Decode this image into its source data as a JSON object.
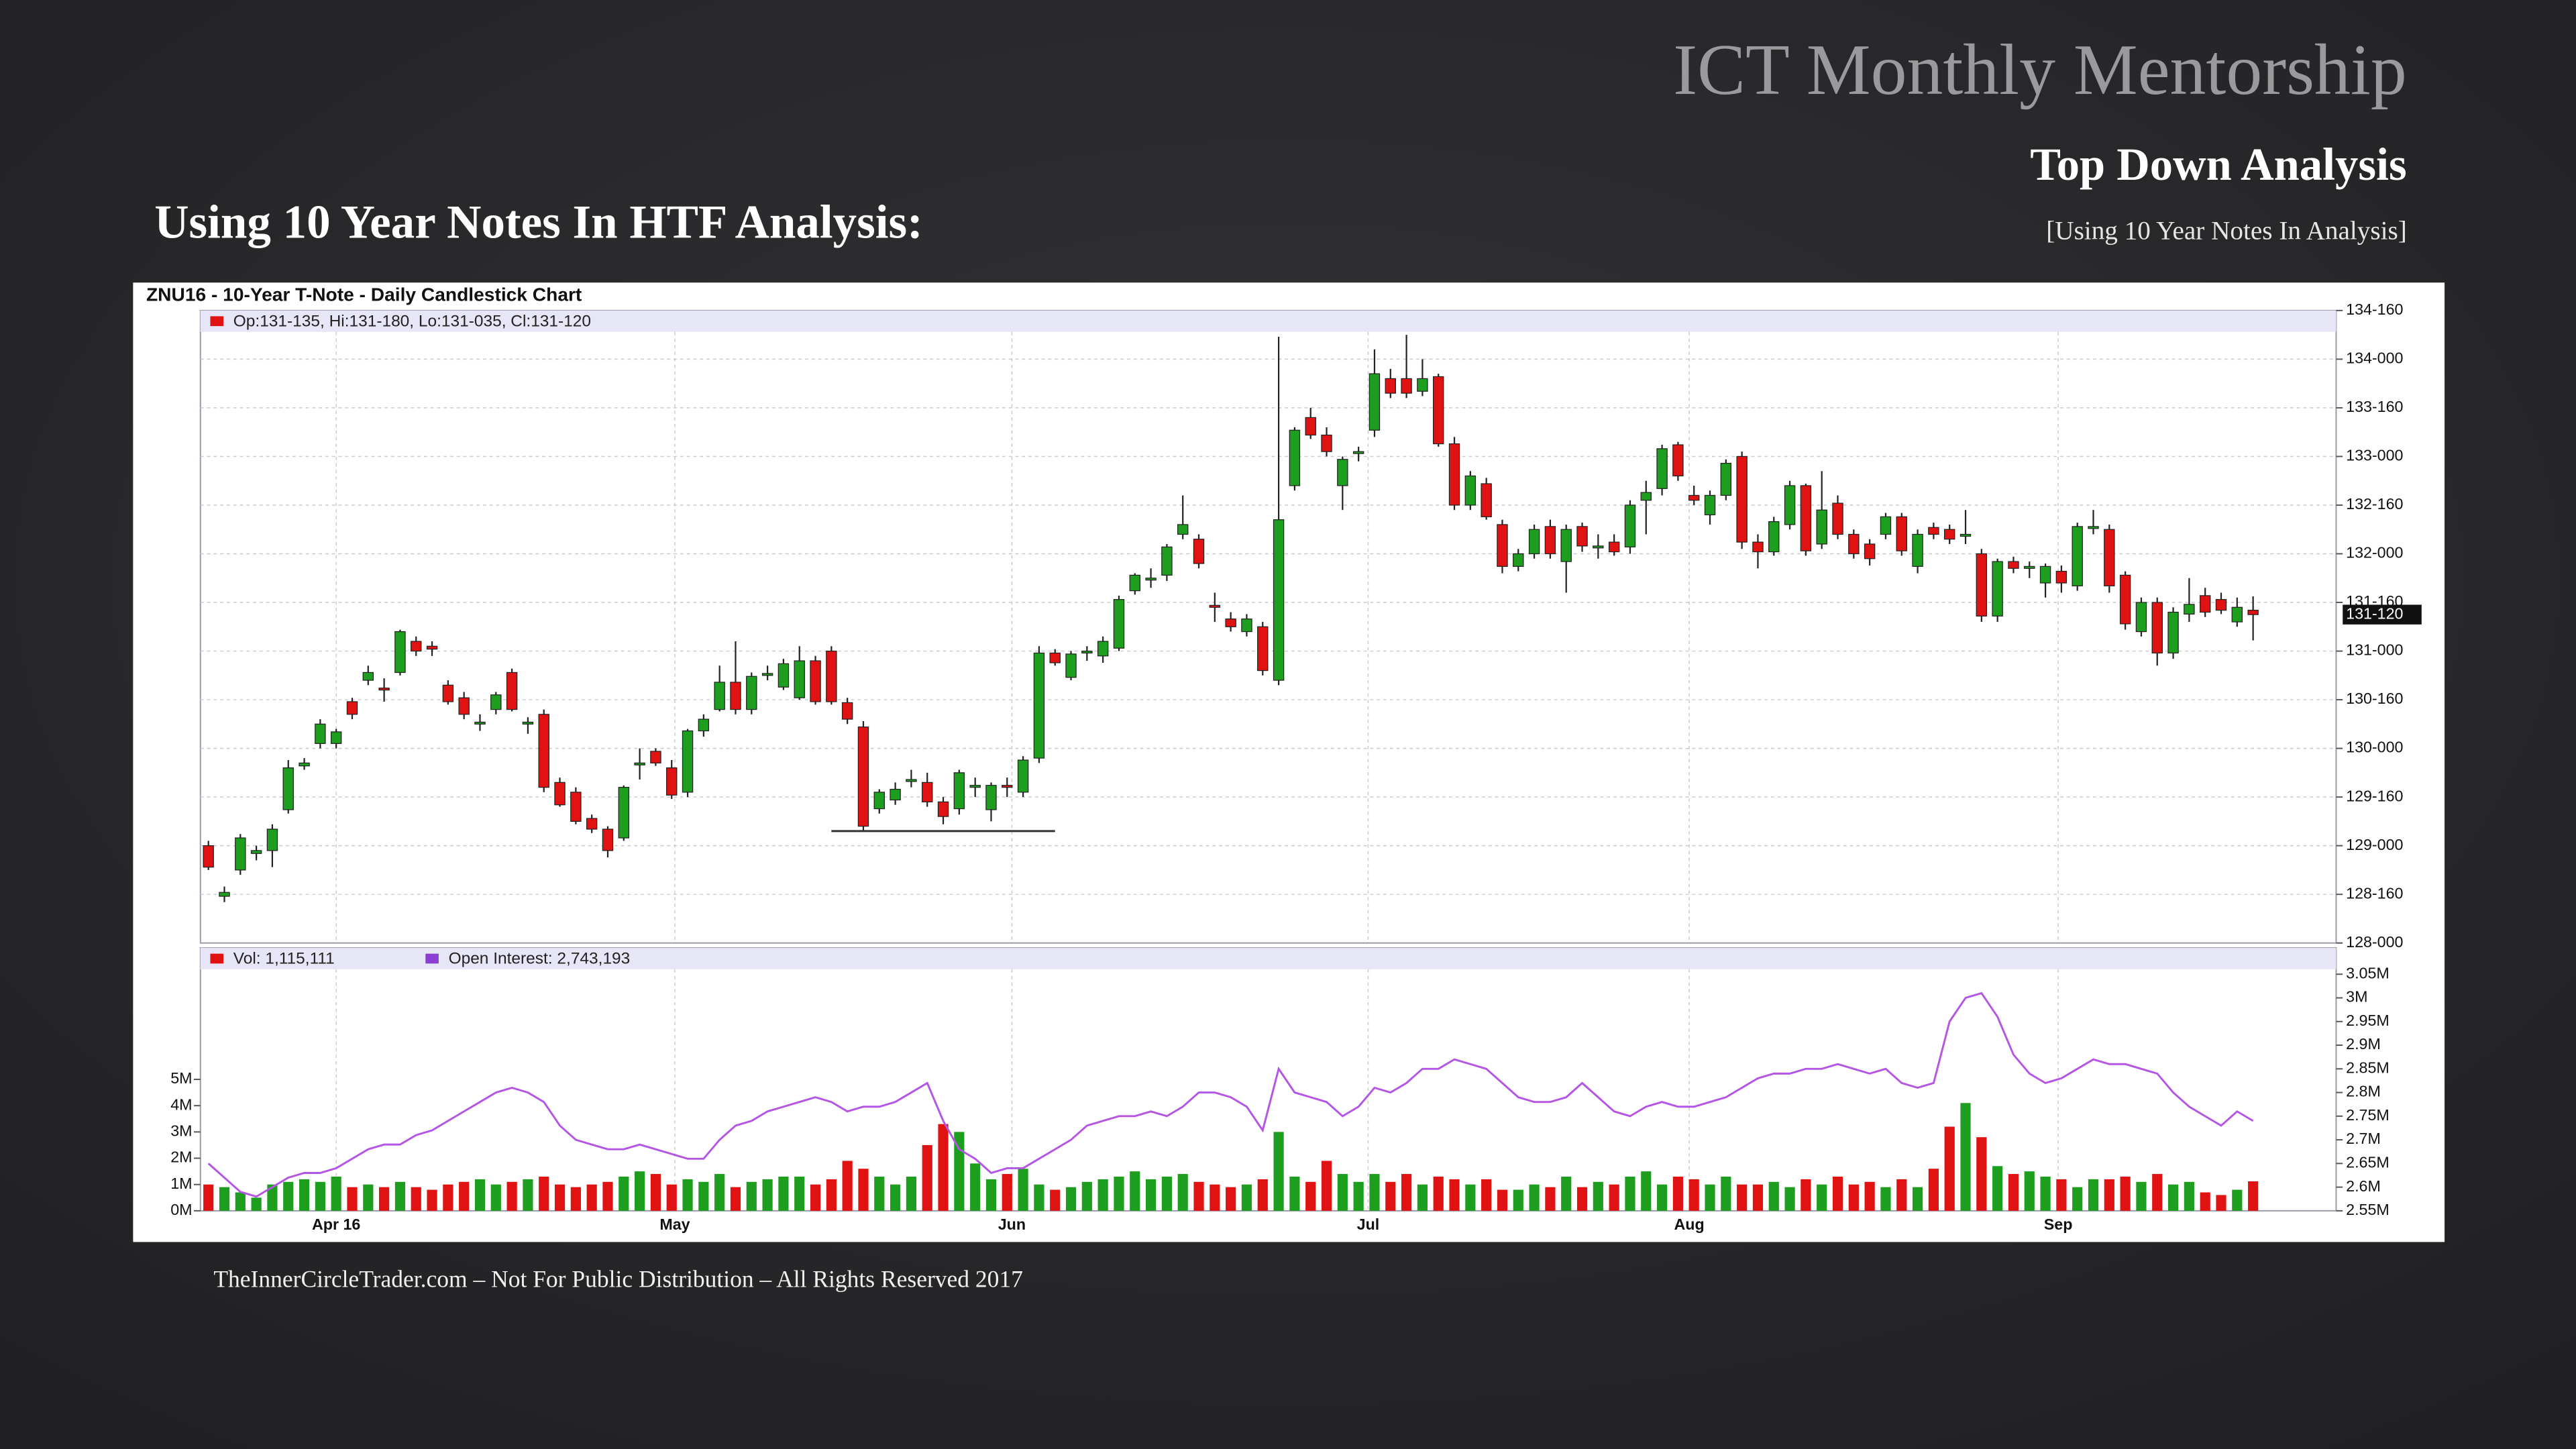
{
  "header": {
    "brand": "ICT Monthly Mentorship",
    "title": "Top Down Analysis",
    "subtitle": "[Using 10 Year Notes In Analysis]",
    "slide_title": "Using 10 Year Notes In HTF Analysis:"
  },
  "footer": "TheInnerCircleTrader.com – Not For Public Distribution – All Rights Reserved 2017",
  "chart_data": {
    "type": "candlestick",
    "title": "ZNU16 - 10-Year T-Note - Daily Candlestick Chart",
    "ohlc_label": "Op:131-135, Hi:131-180, Lo:131-035, Cl:131-120",
    "up_color": "#1e9e1e",
    "down_color": "#e01212",
    "grid": true,
    "xlim": [
      -0.5,
      133.2
    ],
    "ylim": [
      128,
      134.5
    ],
    "xticks": [
      {
        "value": 8,
        "label": "Apr 16"
      },
      {
        "value": 29.2,
        "label": "May"
      },
      {
        "value": 50.3,
        "label": "Jun"
      },
      {
        "value": 72.6,
        "label": "Jul"
      },
      {
        "value": 92.7,
        "label": "Aug"
      },
      {
        "value": 115.8,
        "label": "Sep"
      }
    ],
    "yticks": [
      {
        "value": 128,
        "label": "128-000"
      },
      {
        "value": 128.5,
        "label": "128-160"
      },
      {
        "value": 129,
        "label": "129-000"
      },
      {
        "value": 129.5,
        "label": "129-160"
      },
      {
        "value": 130,
        "label": "130-000"
      },
      {
        "value": 130.5,
        "label": "130-160"
      },
      {
        "value": 131,
        "label": "131-000"
      },
      {
        "value": 131.5,
        "label": "131-160"
      },
      {
        "value": 132,
        "label": "132-000"
      },
      {
        "value": 132.5,
        "label": "132-160"
      },
      {
        "value": 133,
        "label": "133-000"
      },
      {
        "value": 133.5,
        "label": "133-160"
      },
      {
        "value": 134,
        "label": "134-000"
      },
      {
        "value": 134.5,
        "label": "134-160"
      }
    ],
    "last_price_label": "131-120",
    "support_line": {
      "start": 39,
      "end": 53,
      "value": 129.15
    },
    "open": [
      129.0,
      128.48,
      128.75,
      128.92,
      128.95,
      129.37,
      129.82,
      130.05,
      130.05,
      130.48,
      130.7,
      130.62,
      130.78,
      131.1,
      131.05,
      130.65,
      130.52,
      130.25,
      130.4,
      130.78,
      130.25,
      130.35,
      129.65,
      129.55,
      129.28,
      129.17,
      129.08,
      129.83,
      129.97,
      129.8,
      129.55,
      130.18,
      130.4,
      130.68,
      130.4,
      130.75,
      130.63,
      130.52,
      130.9,
      131.0,
      130.47,
      130.22,
      129.38,
      129.47,
      129.66,
      129.65,
      129.45,
      129.38,
      129.6,
      129.37,
      129.62,
      129.55,
      129.9,
      130.98,
      130.73,
      130.98,
      130.95,
      131.03,
      131.62,
      131.73,
      131.78,
      132.2,
      132.15,
      131.47,
      131.33,
      131.2,
      131.25,
      130.7,
      132.7,
      133.4,
      133.22,
      132.7,
      133.03,
      133.27,
      133.8,
      133.8,
      133.67,
      133.82,
      133.13,
      132.5,
      132.72,
      132.3,
      131.87,
      132.0,
      132.28,
      131.92,
      132.28,
      132.06,
      132.12,
      132.07,
      132.55,
      132.67,
      133.12,
      132.6,
      132.4,
      132.6,
      133.0,
      132.12,
      132.02,
      132.3,
      132.7,
      132.1,
      132.52,
      132.2,
      132.1,
      132.2,
      132.38,
      131.87,
      132.27,
      132.25,
      132.18,
      132.0,
      131.36,
      131.92,
      131.85,
      131.7,
      131.82,
      131.67,
      132.27,
      132.25,
      131.78,
      131.2,
      131.5,
      130.98,
      131.38,
      131.57,
      131.53,
      131.3,
      131.42
    ],
    "high": [
      129.05,
      128.58,
      129.12,
      129.0,
      129.22,
      129.88,
      129.9,
      130.3,
      130.2,
      130.52,
      130.85,
      130.72,
      131.22,
      131.15,
      131.1,
      130.7,
      130.58,
      130.35,
      130.58,
      130.82,
      130.32,
      130.4,
      129.7,
      129.6,
      129.32,
      129.2,
      129.62,
      130.0,
      130.0,
      129.88,
      130.2,
      130.35,
      130.85,
      131.1,
      130.78,
      130.85,
      130.92,
      131.05,
      130.95,
      131.05,
      130.52,
      130.28,
      129.58,
      129.65,
      129.78,
      129.75,
      129.5,
      129.78,
      129.7,
      129.65,
      129.7,
      129.92,
      131.05,
      131.02,
      131.0,
      131.05,
      131.15,
      131.57,
      131.8,
      131.85,
      132.1,
      132.6,
      132.2,
      131.6,
      131.4,
      131.38,
      131.3,
      134.23,
      133.3,
      133.5,
      133.3,
      133.0,
      133.1,
      134.1,
      133.9,
      134.25,
      134.0,
      133.85,
      133.2,
      132.85,
      132.78,
      132.35,
      132.05,
      132.3,
      132.35,
      132.3,
      132.32,
      132.2,
      132.2,
      132.55,
      132.75,
      133.12,
      133.15,
      132.7,
      132.65,
      132.97,
      133.05,
      132.2,
      132.38,
      132.75,
      132.72,
      132.85,
      132.6,
      132.25,
      132.15,
      132.42,
      132.42,
      132.25,
      132.32,
      132.3,
      132.45,
      132.05,
      131.95,
      131.97,
      131.92,
      131.9,
      131.88,
      132.32,
      132.45,
      132.3,
      131.82,
      131.55,
      131.55,
      131.45,
      131.75,
      131.65,
      131.6,
      131.55,
      131.5625
    ],
    "low": [
      128.75,
      128.42,
      128.7,
      128.85,
      128.78,
      129.33,
      129.78,
      130.0,
      130.0,
      130.3,
      130.65,
      130.48,
      130.75,
      130.95,
      130.95,
      130.45,
      130.3,
      130.18,
      130.35,
      130.38,
      130.15,
      129.55,
      129.4,
      129.22,
      129.13,
      128.88,
      129.05,
      129.68,
      129.82,
      129.48,
      129.5,
      130.12,
      130.38,
      130.35,
      130.35,
      130.7,
      130.6,
      130.5,
      130.45,
      130.45,
      130.25,
      129.15,
      129.33,
      129.42,
      129.6,
      129.4,
      129.22,
      129.32,
      129.5,
      129.25,
      129.5,
      129.5,
      129.85,
      130.85,
      130.7,
      130.9,
      130.88,
      131.0,
      131.58,
      131.65,
      131.72,
      132.15,
      131.85,
      131.3,
      131.2,
      131.15,
      130.75,
      130.65,
      132.65,
      133.18,
      133.0,
      132.45,
      132.95,
      133.2,
      133.6,
      133.6,
      133.62,
      133.1,
      132.45,
      132.45,
      132.35,
      131.8,
      131.82,
      131.95,
      131.95,
      131.6,
      132.02,
      131.95,
      131.98,
      132.0,
      132.2,
      132.6,
      132.75,
      132.5,
      132.3,
      132.55,
      132.05,
      131.85,
      131.98,
      132.25,
      131.98,
      132.05,
      132.15,
      131.95,
      131.88,
      132.15,
      131.98,
      131.8,
      132.15,
      132.1,
      132.1,
      131.3,
      131.3,
      131.8,
      131.75,
      131.55,
      131.6,
      131.62,
      132.2,
      131.6,
      131.22,
      131.15,
      130.85,
      130.92,
      131.3,
      131.35,
      131.38,
      131.25,
      131.11
    ],
    "close": [
      128.78,
      128.52,
      129.08,
      128.95,
      129.17,
      129.8,
      129.85,
      130.25,
      130.17,
      130.35,
      130.78,
      130.6,
      131.2,
      131.0,
      131.02,
      130.48,
      130.35,
      130.27,
      130.55,
      130.4,
      130.27,
      129.6,
      129.42,
      129.25,
      129.17,
      128.95,
      129.6,
      129.85,
      129.85,
      129.52,
      130.18,
      130.3,
      130.68,
      130.4,
      130.74,
      130.77,
      130.87,
      130.9,
      130.48,
      130.48,
      130.3,
      129.2,
      129.55,
      129.58,
      129.68,
      129.45,
      129.3,
      129.75,
      129.62,
      129.62,
      129.6,
      129.88,
      130.98,
      130.88,
      130.97,
      131.0,
      131.1,
      131.53,
      131.78,
      131.75,
      132.07,
      132.3,
      131.9,
      131.45,
      131.25,
      131.33,
      130.8,
      132.35,
      133.27,
      133.22,
      133.05,
      132.97,
      133.05,
      133.85,
      133.65,
      133.65,
      133.8,
      133.13,
      132.5,
      132.8,
      132.38,
      131.87,
      132.0,
      132.25,
      132.0,
      132.25,
      132.08,
      132.08,
      132.02,
      132.5,
      132.63,
      133.08,
      132.8,
      132.55,
      132.6,
      132.93,
      132.12,
      132.02,
      132.33,
      132.7,
      132.03,
      132.45,
      132.2,
      132.0,
      131.95,
      132.38,
      132.03,
      132.2,
      132.2,
      132.15,
      132.2,
      131.36,
      131.92,
      131.85,
      131.87,
      131.87,
      131.7,
      132.28,
      132.28,
      131.67,
      131.28,
      131.5,
      130.98,
      131.4,
      131.48,
      131.4,
      131.42,
      131.45,
      131.375
    ],
    "volume": {
      "name": "Vol: 1,115,111",
      "ylim": [
        0,
        9
      ],
      "yticks": [
        {
          "value": 0,
          "label": "0M"
        },
        {
          "value": 1,
          "label": "1M"
        },
        {
          "value": 2,
          "label": "2M"
        },
        {
          "value": 3,
          "label": "3M"
        },
        {
          "value": 4,
          "label": "4M"
        },
        {
          "value": 5,
          "label": "5M"
        }
      ],
      "values": [
        1.0,
        0.9,
        0.7,
        0.5,
        1.0,
        1.1,
        1.2,
        1.1,
        1.3,
        0.9,
        1.0,
        0.9,
        1.1,
        0.9,
        0.8,
        1.0,
        1.1,
        1.2,
        1.0,
        1.1,
        1.2,
        1.3,
        1.0,
        0.9,
        1.0,
        1.1,
        1.3,
        1.5,
        1.4,
        1.0,
        1.2,
        1.1,
        1.4,
        0.9,
        1.1,
        1.2,
        1.3,
        1.3,
        1.0,
        1.2,
        1.9,
        1.6,
        1.3,
        1.0,
        1.3,
        2.5,
        3.3,
        3.0,
        1.8,
        1.2,
        1.4,
        1.6,
        1.0,
        0.8,
        0.9,
        1.1,
        1.2,
        1.3,
        1.5,
        1.2,
        1.3,
        1.4,
        1.1,
        1.0,
        0.9,
        1.0,
        1.2,
        3.0,
        1.3,
        1.1,
        1.9,
        1.4,
        1.1,
        1.4,
        1.1,
        1.4,
        1.0,
        1.3,
        1.2,
        1.0,
        1.2,
        0.8,
        0.8,
        1.0,
        0.9,
        1.3,
        0.9,
        1.1,
        1.0,
        1.3,
        1.5,
        1.0,
        1.3,
        1.2,
        1.0,
        1.3,
        1.0,
        1.0,
        1.1,
        0.9,
        1.2,
        1.0,
        1.3,
        1.0,
        1.1,
        0.9,
        1.2,
        0.9,
        1.6,
        3.2,
        4.1,
        2.8,
        1.7,
        1.4,
        1.5,
        1.3,
        1.2,
        0.9,
        1.2,
        1.2,
        1.3,
        1.1,
        1.4,
        1.0,
        1.1,
        0.7,
        0.6,
        0.8,
        1.12
      ]
    },
    "open_interest": {
      "name": "Open Interest: 2,743,193",
      "color": "#b455e6",
      "ylim": [
        2.55,
        3.05
      ],
      "yticks": [
        {
          "value": 2.55,
          "label": "2.55M"
        },
        {
          "value": 2.6,
          "label": "2.6M"
        },
        {
          "value": 2.65,
          "label": "2.65M"
        },
        {
          "value": 2.7,
          "label": "2.7M"
        },
        {
          "value": 2.75,
          "label": "2.75M"
        },
        {
          "value": 2.8,
          "label": "2.8M"
        },
        {
          "value": 2.85,
          "label": "2.85M"
        },
        {
          "value": 2.9,
          "label": "2.9M"
        },
        {
          "value": 2.95,
          "label": "2.95M"
        },
        {
          "value": 3.0,
          "label": "3M"
        },
        {
          "value": 3.05,
          "label": "3.05M"
        }
      ],
      "values": [
        2.65,
        2.62,
        2.59,
        2.58,
        2.6,
        2.62,
        2.63,
        2.63,
        2.64,
        2.66,
        2.68,
        2.69,
        2.69,
        2.71,
        2.72,
        2.74,
        2.76,
        2.78,
        2.8,
        2.81,
        2.8,
        2.78,
        2.73,
        2.7,
        2.69,
        2.68,
        2.68,
        2.69,
        2.68,
        2.67,
        2.66,
        2.66,
        2.7,
        2.73,
        2.74,
        2.76,
        2.77,
        2.78,
        2.79,
        2.78,
        2.76,
        2.77,
        2.77,
        2.78,
        2.8,
        2.82,
        2.74,
        2.68,
        2.66,
        2.63,
        2.64,
        2.64,
        2.66,
        2.68,
        2.7,
        2.73,
        2.74,
        2.75,
        2.75,
        2.76,
        2.75,
        2.77,
        2.8,
        2.8,
        2.79,
        2.77,
        2.72,
        2.85,
        2.8,
        2.79,
        2.78,
        2.75,
        2.77,
        2.81,
        2.8,
        2.82,
        2.85,
        2.85,
        2.87,
        2.86,
        2.85,
        2.82,
        2.79,
        2.78,
        2.78,
        2.79,
        2.82,
        2.79,
        2.76,
        2.75,
        2.77,
        2.78,
        2.77,
        2.77,
        2.78,
        2.79,
        2.81,
        2.83,
        2.84,
        2.84,
        2.85,
        2.85,
        2.86,
        2.85,
        2.84,
        2.85,
        2.82,
        2.81,
        2.82,
        2.95,
        3.0,
        3.01,
        2.96,
        2.88,
        2.84,
        2.82,
        2.83,
        2.85,
        2.87,
        2.86,
        2.86,
        2.85,
        2.84,
        2.8,
        2.77,
        2.75,
        2.73,
        2.76,
        2.74
      ]
    }
  }
}
